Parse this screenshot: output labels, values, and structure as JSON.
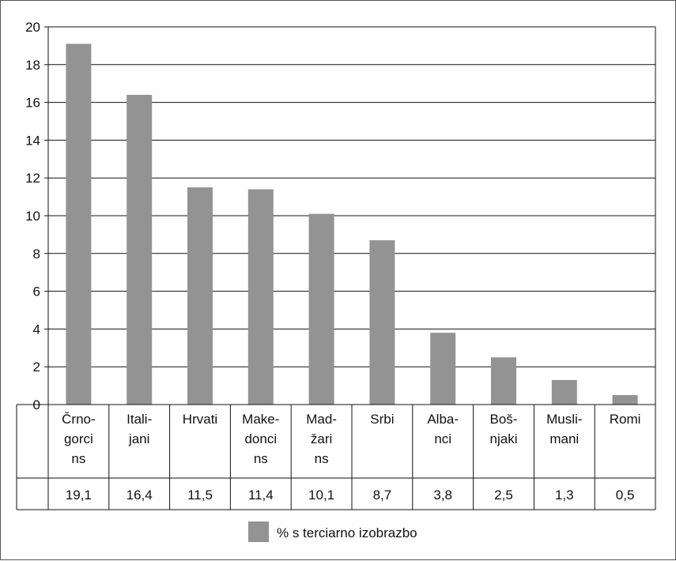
{
  "chart_data": {
    "type": "bar",
    "categories": [
      [
        "Črno-",
        "gorci",
        "ns"
      ],
      [
        "Itali-",
        "jani"
      ],
      [
        "Hrvati"
      ],
      [
        "Make-",
        "donci",
        "ns"
      ],
      [
        "Mad-",
        "žari",
        "ns"
      ],
      [
        "Srbi"
      ],
      [
        "Alba-",
        "nci"
      ],
      [
        "Boš-",
        "njaki"
      ],
      [
        "Musli-",
        "mani"
      ],
      [
        "Romi"
      ]
    ],
    "series": [
      {
        "name": "% s terciarno izobrazbo",
        "values": [
          19.1,
          16.4,
          11.5,
          11.4,
          10.1,
          8.7,
          3.8,
          2.5,
          1.3,
          0.5
        ],
        "labels": [
          "19,1",
          "16,4",
          "11,5",
          "11,4",
          "10,1",
          "8,7",
          "3,8",
          "2,5",
          "1,3",
          "0,5"
        ],
        "color": "#939393"
      }
    ],
    "ylim": [
      0,
      20
    ],
    "yticks": [
      0,
      2,
      4,
      6,
      8,
      10,
      12,
      14,
      16,
      18,
      20
    ],
    "grid": true,
    "legend": "bottom",
    "data_table": true
  },
  "colors": {
    "bar": "#939393",
    "gridline": "#111111",
    "axis": "#111111"
  }
}
